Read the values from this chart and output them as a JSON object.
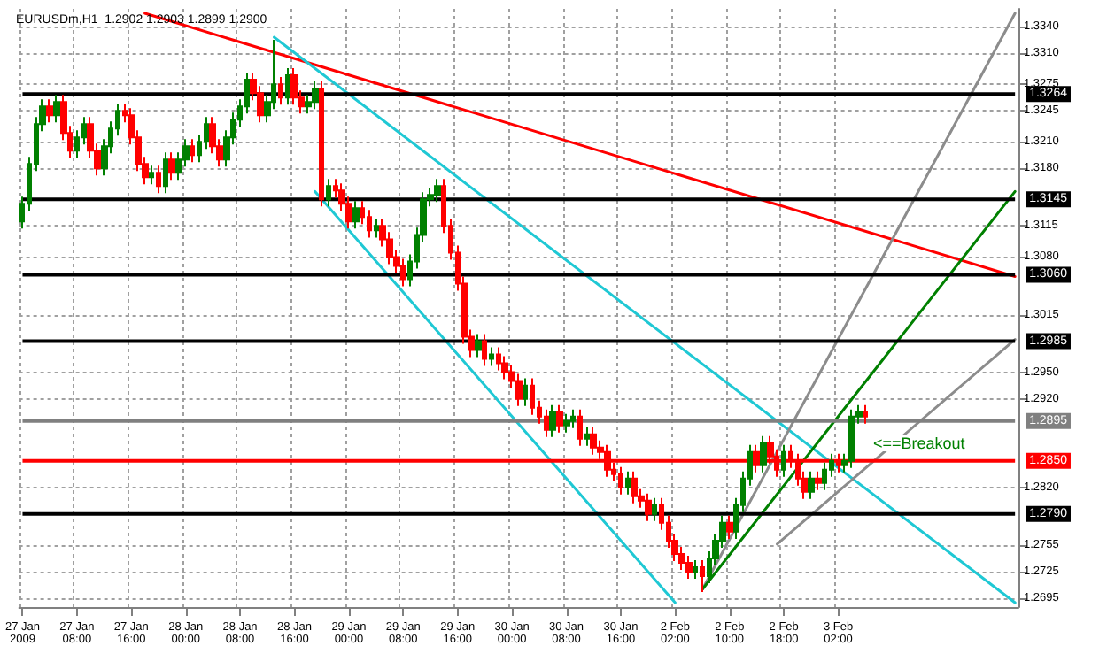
{
  "chart_data": {
    "type": "candlestick",
    "title": "EURUSDm,H1  1.2902 1.2903 1.2899 1.2900",
    "categories": [
      "27 Jan 2009",
      null,
      null,
      null,
      null,
      null,
      null,
      null,
      "27 Jan 08:00",
      null,
      null,
      null,
      null,
      null,
      null,
      null,
      "27 Jan 16:00",
      null,
      null,
      null,
      null,
      null,
      null,
      null,
      "28 Jan 00:00",
      null,
      null,
      null,
      null,
      null,
      null,
      null,
      "28 Jan 08:00",
      null,
      null,
      null,
      null,
      null,
      null,
      null,
      "28 Jan 16:00",
      null,
      null,
      null,
      null,
      null,
      null,
      null,
      "29 Jan 00:00",
      null,
      null,
      null,
      null,
      null,
      null,
      null,
      "29 Jan 08:00",
      null,
      null,
      null,
      null,
      null,
      null,
      null,
      "29 Jan 16:00",
      null,
      null,
      null,
      null,
      null,
      null,
      null,
      "30 Jan 00:00",
      null,
      null,
      null,
      null,
      null,
      null,
      null,
      "30 Jan 08:00",
      null,
      null,
      null,
      null,
      null,
      null,
      null,
      "30 Jan 16:00",
      null,
      null,
      null,
      null,
      null,
      null,
      null,
      "2 Feb 02:00",
      null,
      null,
      null,
      null,
      null,
      null,
      null,
      "2 Feb 10:00",
      null,
      null,
      null,
      null,
      null,
      null,
      null,
      "2 Feb 18:00",
      null,
      null,
      null,
      null,
      null,
      null,
      null,
      "3 Feb 02:00",
      null,
      null,
      null,
      null,
      null,
      null,
      null,
      null,
      null,
      null,
      null,
      null,
      null,
      null,
      null,
      null,
      null,
      null,
      null,
      null,
      null,
      null,
      null,
      null,
      null,
      null
    ],
    "series": [
      {
        "ohlc": [
          [
            1.312,
            1.3148,
            1.3112,
            1.314
          ],
          [
            1.314,
            1.3193,
            1.3132,
            1.3185
          ],
          [
            1.3185,
            1.3238,
            1.3177,
            1.323
          ],
          [
            1.323,
            1.3258,
            1.3222,
            1.325
          ],
          [
            1.325,
            1.3258,
            1.3232,
            1.324
          ],
          [
            1.324,
            1.3263,
            1.3232,
            1.3255
          ],
          [
            1.3255,
            1.3263,
            1.3212,
            1.322
          ],
          [
            1.322,
            1.3228,
            1.3192,
            1.32
          ],
          [
            1.32,
            1.3223,
            1.3192,
            1.3215
          ],
          [
            1.3215,
            1.3238,
            1.3207,
            1.323
          ],
          [
            1.323,
            1.3238,
            1.3192,
            1.32
          ],
          [
            1.32,
            1.3208,
            1.3172,
            1.318
          ],
          [
            1.318,
            1.3213,
            1.3172,
            1.3205
          ],
          [
            1.3205,
            1.3233,
            1.3197,
            1.3225
          ],
          [
            1.3225,
            1.3253,
            1.3217,
            1.3245
          ],
          [
            1.3245,
            1.3253,
            1.3232,
            1.324
          ],
          [
            1.324,
            1.3248,
            1.3207,
            1.3215
          ],
          [
            1.3215,
            1.3223,
            1.3177,
            1.3185
          ],
          [
            1.3185,
            1.3193,
            1.3162,
            1.317
          ],
          [
            1.317,
            1.3183,
            1.3162,
            1.3175
          ],
          [
            1.3175,
            1.3183,
            1.3152,
            1.316
          ],
          [
            1.316,
            1.3198,
            1.3152,
            1.319
          ],
          [
            1.319,
            1.3198,
            1.3167,
            1.3175
          ],
          [
            1.3175,
            1.3198,
            1.3167,
            1.319
          ],
          [
            1.319,
            1.3213,
            1.3182,
            1.3205
          ],
          [
            1.3205,
            1.3213,
            1.3187,
            1.3195
          ],
          [
            1.3195,
            1.3218,
            1.3187,
            1.321
          ],
          [
            1.321,
            1.3238,
            1.3202,
            1.323
          ],
          [
            1.323,
            1.3238,
            1.3197,
            1.3205
          ],
          [
            1.3205,
            1.3213,
            1.3182,
            1.319
          ],
          [
            1.319,
            1.3223,
            1.3182,
            1.3215
          ],
          [
            1.3215,
            1.3243,
            1.3207,
            1.3235
          ],
          [
            1.3235,
            1.3258,
            1.3227,
            1.325
          ],
          [
            1.325,
            1.3288,
            1.3242,
            1.328
          ],
          [
            1.328,
            1.3288,
            1.3257,
            1.3265
          ],
          [
            1.3265,
            1.3273,
            1.3232,
            1.324
          ],
          [
            1.324,
            1.3263,
            1.3232,
            1.3255
          ],
          [
            1.3255,
            1.3325,
            1.3247,
            1.3275
          ],
          [
            1.3275,
            1.3283,
            1.3252,
            1.326
          ],
          [
            1.326,
            1.3293,
            1.3252,
            1.3285
          ],
          [
            1.3285,
            1.3293,
            1.3252,
            1.326
          ],
          [
            1.326,
            1.3268,
            1.3242,
            1.325
          ],
          [
            1.325,
            1.3263,
            1.3242,
            1.3255
          ],
          [
            1.3255,
            1.3278,
            1.3247,
            1.327
          ],
          [
            1.327,
            1.3278,
            1.3137,
            1.3145
          ],
          [
            1.3145,
            1.3168,
            1.3137,
            1.316
          ],
          [
            1.316,
            1.3168,
            1.3147,
            1.3155
          ],
          [
            1.3155,
            1.3163,
            1.3132,
            1.314
          ],
          [
            1.314,
            1.3148,
            1.3112,
            1.312
          ],
          [
            1.312,
            1.3143,
            1.3112,
            1.3135
          ],
          [
            1.3135,
            1.3143,
            1.3117,
            1.3125
          ],
          [
            1.3125,
            1.3133,
            1.3102,
            1.311
          ],
          [
            1.311,
            1.3123,
            1.3102,
            1.3115
          ],
          [
            1.3115,
            1.3123,
            1.3092,
            1.31
          ],
          [
            1.31,
            1.3108,
            1.3072,
            1.308
          ],
          [
            1.308,
            1.3088,
            1.3062,
            1.307
          ],
          [
            1.307,
            1.3078,
            1.3047,
            1.3055
          ],
          [
            1.3055,
            1.3083,
            1.3047,
            1.3075
          ],
          [
            1.3075,
            1.3113,
            1.3067,
            1.3105
          ],
          [
            1.3105,
            1.3153,
            1.3097,
            1.3145
          ],
          [
            1.3145,
            1.3158,
            1.3137,
            1.315
          ],
          [
            1.315,
            1.3168,
            1.3142,
            1.316
          ],
          [
            1.316,
            1.3168,
            1.3107,
            1.3115
          ],
          [
            1.3115,
            1.3123,
            1.3077,
            1.3085
          ],
          [
            1.3085,
            1.3093,
            1.3042,
            1.305
          ],
          [
            1.305,
            1.3058,
            1.2982,
            1.299
          ],
          [
            1.299,
            1.2998,
            1.2967,
            1.2975
          ],
          [
            1.2975,
            1.2993,
            1.2967,
            1.2985
          ],
          [
            1.2985,
            1.2993,
            1.2957,
            1.2965
          ],
          [
            1.2965,
            1.2978,
            1.2957,
            1.297
          ],
          [
            1.297,
            1.2978,
            1.2952,
            1.296
          ],
          [
            1.296,
            1.2968,
            1.2942,
            1.295
          ],
          [
            1.295,
            1.2958,
            1.2932,
            1.294
          ],
          [
            1.294,
            1.2948,
            1.2912,
            1.292
          ],
          [
            1.292,
            1.2943,
            1.2912,
            1.2935
          ],
          [
            1.2935,
            1.2943,
            1.2902,
            1.291
          ],
          [
            1.291,
            1.2918,
            1.2892,
            1.29
          ],
          [
            1.29,
            1.2908,
            1.2877,
            1.2885
          ],
          [
            1.2885,
            1.2913,
            1.2877,
            1.2905
          ],
          [
            1.2905,
            1.2913,
            1.2882,
            1.289
          ],
          [
            1.289,
            1.2903,
            1.2882,
            1.2895
          ],
          [
            1.2895,
            1.2908,
            1.2887,
            1.29
          ],
          [
            1.29,
            1.2908,
            1.2867,
            1.2875
          ],
          [
            1.2875,
            1.2888,
            1.2867,
            1.288
          ],
          [
            1.288,
            1.2888,
            1.2857,
            1.2865
          ],
          [
            1.2865,
            1.2873,
            1.2852,
            1.286
          ],
          [
            1.286,
            1.2868,
            1.2832,
            1.284
          ],
          [
            1.284,
            1.2848,
            1.2827,
            1.2835
          ],
          [
            1.2835,
            1.2843,
            1.2812,
            1.282
          ],
          [
            1.282,
            1.2838,
            1.2812,
            1.283
          ],
          [
            1.283,
            1.2838,
            1.2802,
            1.281
          ],
          [
            1.281,
            1.2818,
            1.2797,
            1.2805
          ],
          [
            1.2805,
            1.2813,
            1.2782,
            1.279
          ],
          [
            1.279,
            1.2808,
            1.2782,
            1.28
          ],
          [
            1.28,
            1.2808,
            1.2772,
            1.278
          ],
          [
            1.278,
            1.2788,
            1.2752,
            1.276
          ],
          [
            1.276,
            1.2768,
            1.2737,
            1.2745
          ],
          [
            1.2745,
            1.2753,
            1.2727,
            1.2735
          ],
          [
            1.2735,
            1.2743,
            1.2717,
            1.2725
          ],
          [
            1.2725,
            1.2738,
            1.2717,
            1.273
          ],
          [
            1.273,
            1.2738,
            1.2702,
            1.272
          ],
          [
            1.272,
            1.2748,
            1.2712,
            1.274
          ],
          [
            1.274,
            1.2768,
            1.2732,
            1.276
          ],
          [
            1.276,
            1.2788,
            1.2752,
            1.278
          ],
          [
            1.278,
            1.2788,
            1.2762,
            1.277
          ],
          [
            1.277,
            1.2808,
            1.2762,
            1.28
          ],
          [
            1.28,
            1.2838,
            1.2792,
            1.283
          ],
          [
            1.283,
            1.2868,
            1.2822,
            1.286
          ],
          [
            1.286,
            1.2868,
            1.2837,
            1.2845
          ],
          [
            1.2845,
            1.2878,
            1.2837,
            1.287
          ],
          [
            1.287,
            1.2878,
            1.2847,
            1.2855
          ],
          [
            1.2855,
            1.2863,
            1.2832,
            1.284
          ],
          [
            1.284,
            1.2868,
            1.2832,
            1.286
          ],
          [
            1.286,
            1.2868,
            1.2842,
            1.285
          ],
          [
            1.285,
            1.2858,
            1.2822,
            1.283
          ],
          [
            1.283,
            1.2838,
            1.2807,
            1.2815
          ],
          [
            1.2815,
            1.2838,
            1.2807,
            1.283
          ],
          [
            1.283,
            1.2838,
            1.2817,
            1.2825
          ],
          [
            1.2825,
            1.2848,
            1.2817,
            1.284
          ],
          [
            1.284,
            1.2858,
            1.2832,
            1.285
          ],
          [
            1.285,
            1.2858,
            1.2837,
            1.2845
          ],
          [
            1.2845,
            1.2858,
            1.2837,
            1.285
          ],
          [
            1.285,
            1.2908,
            1.2842,
            1.29
          ],
          [
            1.29,
            1.2913,
            1.2892,
            1.2905
          ],
          [
            1.2905,
            1.2913,
            1.2892,
            1.29
          ],
          null,
          null,
          null,
          null,
          null,
          null,
          null,
          null,
          null,
          null,
          null,
          null,
          null,
          null,
          null,
          null,
          null,
          null,
          null,
          null,
          null,
          null
        ],
        "colors": [
          "#008000",
          "#008000",
          "#008000",
          "#008000",
          "#ff0000",
          "#008000",
          "#ff0000",
          "#ff0000",
          "#008000",
          "#008000",
          "#ff0000",
          "#ff0000",
          "#008000",
          "#008000",
          "#008000",
          "#ff0000",
          "#ff0000",
          "#ff0000",
          "#ff0000",
          "#008000",
          "#ff0000",
          "#008000",
          "#ff0000",
          "#008000",
          "#008000",
          "#ff0000",
          "#008000",
          "#008000",
          "#ff0000",
          "#ff0000",
          "#008000",
          "#008000",
          "#008000",
          "#008000",
          "#ff0000",
          "#ff0000",
          "#008000",
          "#008000",
          "#ff0000",
          "#008000",
          "#ff0000",
          "#ff0000",
          "#008000",
          "#008000",
          "#ff0000",
          "#008000",
          "#ff0000",
          "#ff0000",
          "#ff0000",
          "#008000",
          "#ff0000",
          "#ff0000",
          "#008000",
          "#ff0000",
          "#ff0000",
          "#ff0000",
          "#ff0000",
          "#008000",
          "#008000",
          "#008000",
          "#008000",
          "#008000",
          "#ff0000",
          "#ff0000",
          "#ff0000",
          "#ff0000",
          "#ff0000",
          "#008000",
          "#ff0000",
          "#008000",
          "#ff0000",
          "#ff0000",
          "#ff0000",
          "#ff0000",
          "#008000",
          "#ff0000",
          "#ff0000",
          "#ff0000",
          "#008000",
          "#ff0000",
          "#008000",
          "#008000",
          "#ff0000",
          "#008000",
          "#ff0000",
          "#ff0000",
          "#ff0000",
          "#ff0000",
          "#ff0000",
          "#008000",
          "#ff0000",
          "#ff0000",
          "#ff0000",
          "#008000",
          "#ff0000",
          "#ff0000",
          "#ff0000",
          "#ff0000",
          "#ff0000",
          "#008000",
          "#ff0000",
          "#008000",
          "#008000",
          "#008000",
          "#ff0000",
          "#008000",
          "#008000",
          "#008000",
          "#ff0000",
          "#008000",
          "#ff0000",
          "#ff0000",
          "#008000",
          "#ff0000",
          "#ff0000",
          "#ff0000",
          "#008000",
          "#ff0000",
          "#008000",
          "#008000",
          "#ff0000",
          "#008000",
          "#008000",
          "#008000",
          "#ff0000",
          null,
          null,
          null,
          null,
          null,
          null,
          null,
          null,
          null,
          null,
          null,
          null,
          null,
          null,
          null,
          null,
          null,
          null,
          null,
          null,
          null,
          null
        ]
      },
      {
        "type": "line",
        "color": "#ff0000",
        "values": [
          null,
          null,
          null,
          null,
          null,
          null,
          null,
          null,
          null,
          null,
          null,
          null,
          null,
          null,
          null,
          null,
          null,
          null,
          1.3355,
          null,
          null,
          null,
          null,
          null,
          null,
          null,
          null,
          null,
          null,
          null,
          null,
          null,
          null,
          null,
          null,
          null,
          null,
          null,
          null,
          null,
          null,
          null,
          null,
          null,
          null,
          null,
          null,
          null,
          null,
          null,
          null,
          null,
          null,
          null,
          null,
          null,
          null,
          null,
          null,
          null,
          null,
          null,
          null,
          null,
          null,
          null,
          null,
          null,
          null,
          null,
          null,
          null,
          null,
          null,
          null,
          null,
          null,
          null,
          null,
          null,
          null,
          null,
          null,
          null,
          null,
          null,
          null,
          null,
          null,
          null,
          null,
          null,
          null,
          null,
          null,
          null,
          null,
          null,
          null,
          null,
          null,
          null,
          null,
          null,
          null,
          null,
          null,
          null,
          null,
          null,
          null,
          null,
          null,
          null,
          null,
          null,
          null,
          null,
          null,
          null,
          null,
          null,
          null,
          null,
          null,
          null,
          null,
          null,
          null,
          null,
          null,
          null,
          null,
          null,
          null,
          null,
          null,
          null,
          null,
          null,
          null,
          null,
          null,
          null,
          null,
          null,
          1.3058
        ]
      },
      {
        "type": "line",
        "color": "#1fc8d4",
        "values": [
          null,
          null,
          null,
          null,
          null,
          null,
          null,
          null,
          null,
          null,
          null,
          null,
          null,
          null,
          null,
          null,
          null,
          null,
          null,
          null,
          null,
          null,
          null,
          null,
          null,
          null,
          null,
          null,
          null,
          null,
          null,
          null,
          null,
          null,
          null,
          null,
          null,
          1.3328,
          null,
          null,
          null,
          null,
          null,
          null,
          null,
          null,
          null,
          null,
          null,
          null,
          null,
          null,
          null,
          null,
          null,
          null,
          null,
          null,
          null,
          null,
          null,
          null,
          null,
          null,
          null,
          null,
          null,
          null,
          null,
          null,
          null,
          null,
          null,
          null,
          null,
          null,
          null,
          null,
          null,
          null,
          null,
          null,
          null,
          null,
          null,
          null,
          null,
          null,
          null,
          null,
          null,
          null,
          null,
          null,
          null,
          null,
          null,
          null,
          null,
          null,
          null,
          null,
          null,
          null,
          null,
          null,
          null,
          null,
          null,
          null,
          null,
          null,
          null,
          null,
          null,
          null,
          null,
          null,
          null,
          null,
          null,
          null,
          null,
          null,
          null,
          null,
          null,
          null,
          null,
          null,
          null,
          null,
          null,
          null,
          null,
          null,
          null,
          null,
          null,
          null,
          null,
          null,
          null,
          null,
          null,
          null,
          1.269
        ]
      },
      {
        "type": "line",
        "color": "#1fc8d4",
        "values": [
          null,
          null,
          null,
          null,
          null,
          null,
          null,
          null,
          null,
          null,
          null,
          null,
          null,
          null,
          null,
          null,
          null,
          null,
          null,
          null,
          null,
          null,
          null,
          null,
          null,
          null,
          null,
          null,
          null,
          null,
          null,
          null,
          null,
          null,
          null,
          null,
          null,
          null,
          null,
          null,
          null,
          null,
          null,
          1.3154,
          null,
          null,
          null,
          null,
          null,
          null,
          null,
          null,
          null,
          null,
          null,
          null,
          null,
          null,
          null,
          null,
          null,
          null,
          null,
          null,
          null,
          null,
          null,
          null,
          null,
          null,
          null,
          null,
          null,
          null,
          null,
          null,
          null,
          null,
          null,
          null,
          null,
          null,
          null,
          null,
          null,
          null,
          null,
          null,
          null,
          null,
          null,
          null,
          null,
          null,
          null,
          null,
          1.269,
          null,
          null,
          null,
          null,
          null,
          null,
          null,
          null,
          null,
          null,
          null,
          null,
          null,
          null,
          null,
          null,
          null,
          null,
          null,
          null,
          null,
          null,
          null,
          null,
          null,
          null,
          null,
          null,
          null,
          null,
          null,
          null,
          null,
          null,
          null,
          null,
          null,
          null,
          null,
          null,
          null,
          null,
          null,
          null,
          null,
          null,
          null,
          null,
          null,
          null
        ]
      },
      {
        "type": "line",
        "color": "#8c8c8c",
        "values": [
          null,
          null,
          null,
          null,
          null,
          null,
          null,
          null,
          null,
          null,
          null,
          null,
          null,
          null,
          null,
          null,
          null,
          null,
          null,
          null,
          null,
          null,
          null,
          null,
          null,
          null,
          null,
          null,
          null,
          null,
          null,
          null,
          null,
          null,
          null,
          null,
          null,
          null,
          null,
          null,
          null,
          null,
          null,
          null,
          null,
          null,
          null,
          null,
          null,
          null,
          null,
          null,
          null,
          null,
          null,
          null,
          null,
          null,
          null,
          null,
          null,
          null,
          null,
          null,
          null,
          null,
          null,
          null,
          null,
          null,
          null,
          null,
          null,
          null,
          null,
          null,
          null,
          null,
          null,
          null,
          null,
          null,
          null,
          null,
          null,
          null,
          null,
          null,
          null,
          null,
          null,
          null,
          null,
          null,
          null,
          null,
          null,
          null,
          null,
          null,
          1.2705,
          null,
          null,
          null,
          null,
          null,
          null,
          null,
          null,
          null,
          null,
          null,
          null,
          null,
          null,
          null,
          null,
          null,
          null,
          null,
          null,
          null,
          null,
          null,
          null,
          null,
          null,
          null,
          null,
          null,
          null,
          null,
          null,
          null,
          null,
          null,
          null,
          null,
          null,
          null,
          null,
          null,
          null,
          null,
          null,
          null,
          1.3355
        ]
      },
      {
        "type": "line",
        "color": "#008000",
        "values": [
          null,
          null,
          null,
          null,
          null,
          null,
          null,
          null,
          null,
          null,
          null,
          null,
          null,
          null,
          null,
          null,
          null,
          null,
          null,
          null,
          null,
          null,
          null,
          null,
          null,
          null,
          null,
          null,
          null,
          null,
          null,
          null,
          null,
          null,
          null,
          null,
          null,
          null,
          null,
          null,
          null,
          null,
          null,
          null,
          null,
          null,
          null,
          null,
          null,
          null,
          null,
          null,
          null,
          null,
          null,
          null,
          null,
          null,
          null,
          null,
          null,
          null,
          null,
          null,
          null,
          null,
          null,
          null,
          null,
          null,
          null,
          null,
          null,
          null,
          null,
          null,
          null,
          null,
          null,
          null,
          null,
          null,
          null,
          null,
          null,
          null,
          null,
          null,
          null,
          null,
          null,
          null,
          null,
          null,
          null,
          null,
          null,
          null,
          null,
          null,
          1.2705,
          null,
          null,
          null,
          null,
          null,
          null,
          null,
          null,
          null,
          null,
          null,
          null,
          null,
          null,
          null,
          null,
          null,
          null,
          null,
          null,
          null,
          null,
          null,
          null,
          null,
          null,
          null,
          null,
          null,
          null,
          null,
          null,
          null,
          null,
          null,
          null,
          null,
          null,
          null,
          null,
          null,
          null,
          null,
          null,
          null,
          1.3154
        ]
      },
      {
        "type": "line",
        "color": "#8c8c8c",
        "values": [
          null,
          null,
          null,
          null,
          null,
          null,
          null,
          null,
          null,
          null,
          null,
          null,
          null,
          null,
          null,
          null,
          null,
          null,
          null,
          null,
          null,
          null,
          null,
          null,
          null,
          null,
          null,
          null,
          null,
          null,
          null,
          null,
          null,
          null,
          null,
          null,
          null,
          null,
          null,
          null,
          null,
          null,
          null,
          null,
          null,
          null,
          null,
          null,
          null,
          null,
          null,
          null,
          null,
          null,
          null,
          null,
          null,
          null,
          null,
          null,
          null,
          null,
          null,
          null,
          null,
          null,
          null,
          null,
          null,
          null,
          null,
          null,
          null,
          null,
          null,
          null,
          null,
          null,
          null,
          null,
          null,
          null,
          null,
          null,
          null,
          null,
          null,
          null,
          null,
          null,
          null,
          null,
          null,
          null,
          null,
          null,
          null,
          null,
          null,
          null,
          null,
          null,
          null,
          null,
          null,
          null,
          null,
          null,
          null,
          null,
          null,
          1.2756,
          null,
          null,
          null,
          null,
          null,
          null,
          null,
          null,
          null,
          null,
          null,
          null,
          null,
          null,
          null,
          null,
          null,
          null,
          null,
          null,
          null,
          null,
          null,
          null,
          null,
          null,
          null,
          null,
          null,
          null,
          null,
          null,
          null,
          null,
          1.2987
        ]
      }
    ],
    "ylim": [
      1.2685,
      1.336
    ],
    "yticks": [
      {
        "value": 1.334,
        "label": "1.3340"
      },
      {
        "value": 1.331,
        "label": "1.3310"
      },
      1.3275,
      1.3245,
      {
        "value": 1.321,
        "label": "1.3210"
      },
      {
        "value": 1.318,
        "label": "1.3180"
      },
      1.3115,
      {
        "value": 1.308,
        "label": "1.3080"
      },
      1.3015,
      {
        "value": 1.295,
        "label": "1.2950"
      },
      {
        "value": 1.292,
        "label": "1.2920"
      },
      {
        "value": 1.282,
        "label": "1.2820"
      },
      1.2755,
      1.2725,
      1.2695
    ],
    "ref_lines": [
      {
        "axis": "y",
        "value": 1.3264,
        "label": "1.3264",
        "color": "#000000"
      },
      {
        "axis": "y",
        "value": 1.3145,
        "label": "1.3145",
        "color": "#000000"
      },
      {
        "axis": "y",
        "value": 1.306,
        "label": "1.3060",
        "color": "#000000"
      },
      {
        "axis": "y",
        "value": 1.2985,
        "label": "1.2985",
        "color": "#000000"
      },
      {
        "axis": "y",
        "value": 1.2895,
        "label": "1.2895",
        "color": "#808080"
      },
      {
        "axis": "y",
        "value": 1.285,
        "label": "1.2850",
        "color": "#ff0000"
      },
      {
        "axis": "y",
        "value": 1.279,
        "label": "1.2790",
        "color": "#000000"
      }
    ],
    "annotations": [
      "<==Breakout"
    ],
    "grid": true
  }
}
